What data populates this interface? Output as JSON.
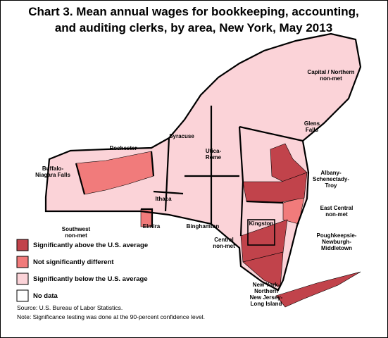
{
  "title": [
    "Chart 3. Mean annual wages for bookkeeping, accounting,",
    "and auditing clerks, by area, New York, May 2013"
  ],
  "areas": [
    {
      "label": [
        "Capital / Northern",
        "non-met"
      ]
    },
    {
      "label": [
        "Glens",
        "Falls"
      ]
    },
    {
      "label": [
        "Syracuse"
      ]
    },
    {
      "label": [
        "Rochester"
      ]
    },
    {
      "label": [
        "Utica-",
        "Rome"
      ]
    },
    {
      "label": [
        "Buffalo-",
        "Niagara Falls"
      ]
    },
    {
      "label": [
        "Albany-",
        "Schenectady-",
        "Troy"
      ]
    },
    {
      "label": [
        "Ithaca"
      ]
    },
    {
      "label": [
        "East Central",
        "non-met"
      ]
    },
    {
      "label": [
        "Elmira"
      ]
    },
    {
      "label": [
        "Binghamton"
      ]
    },
    {
      "label": [
        "Southwest",
        "non-met"
      ]
    },
    {
      "label": [
        "Kingston"
      ]
    },
    {
      "label": [
        "Poughkeepsie-",
        "Newburgh-",
        "Middletown"
      ]
    },
    {
      "label": [
        "Central",
        "non-met"
      ]
    },
    {
      "label": [
        "New York-",
        "Northern",
        "New Jersey-",
        "Long Island"
      ]
    }
  ],
  "legend": [
    {
      "label": "Significantly above the U.S. average",
      "color": "#c1434b"
    },
    {
      "label": "Not significantly different",
      "color": "#f17b7b"
    },
    {
      "label": "Significantly below the U.S. average",
      "color": "#fbd3d8"
    },
    {
      "label": "No data",
      "color": "#ffffff"
    }
  ],
  "source": "Source: U.S. Bureau of Labor Statistics.",
  "note": "Note: Significance testing was done at the 90-percent confidence level."
}
